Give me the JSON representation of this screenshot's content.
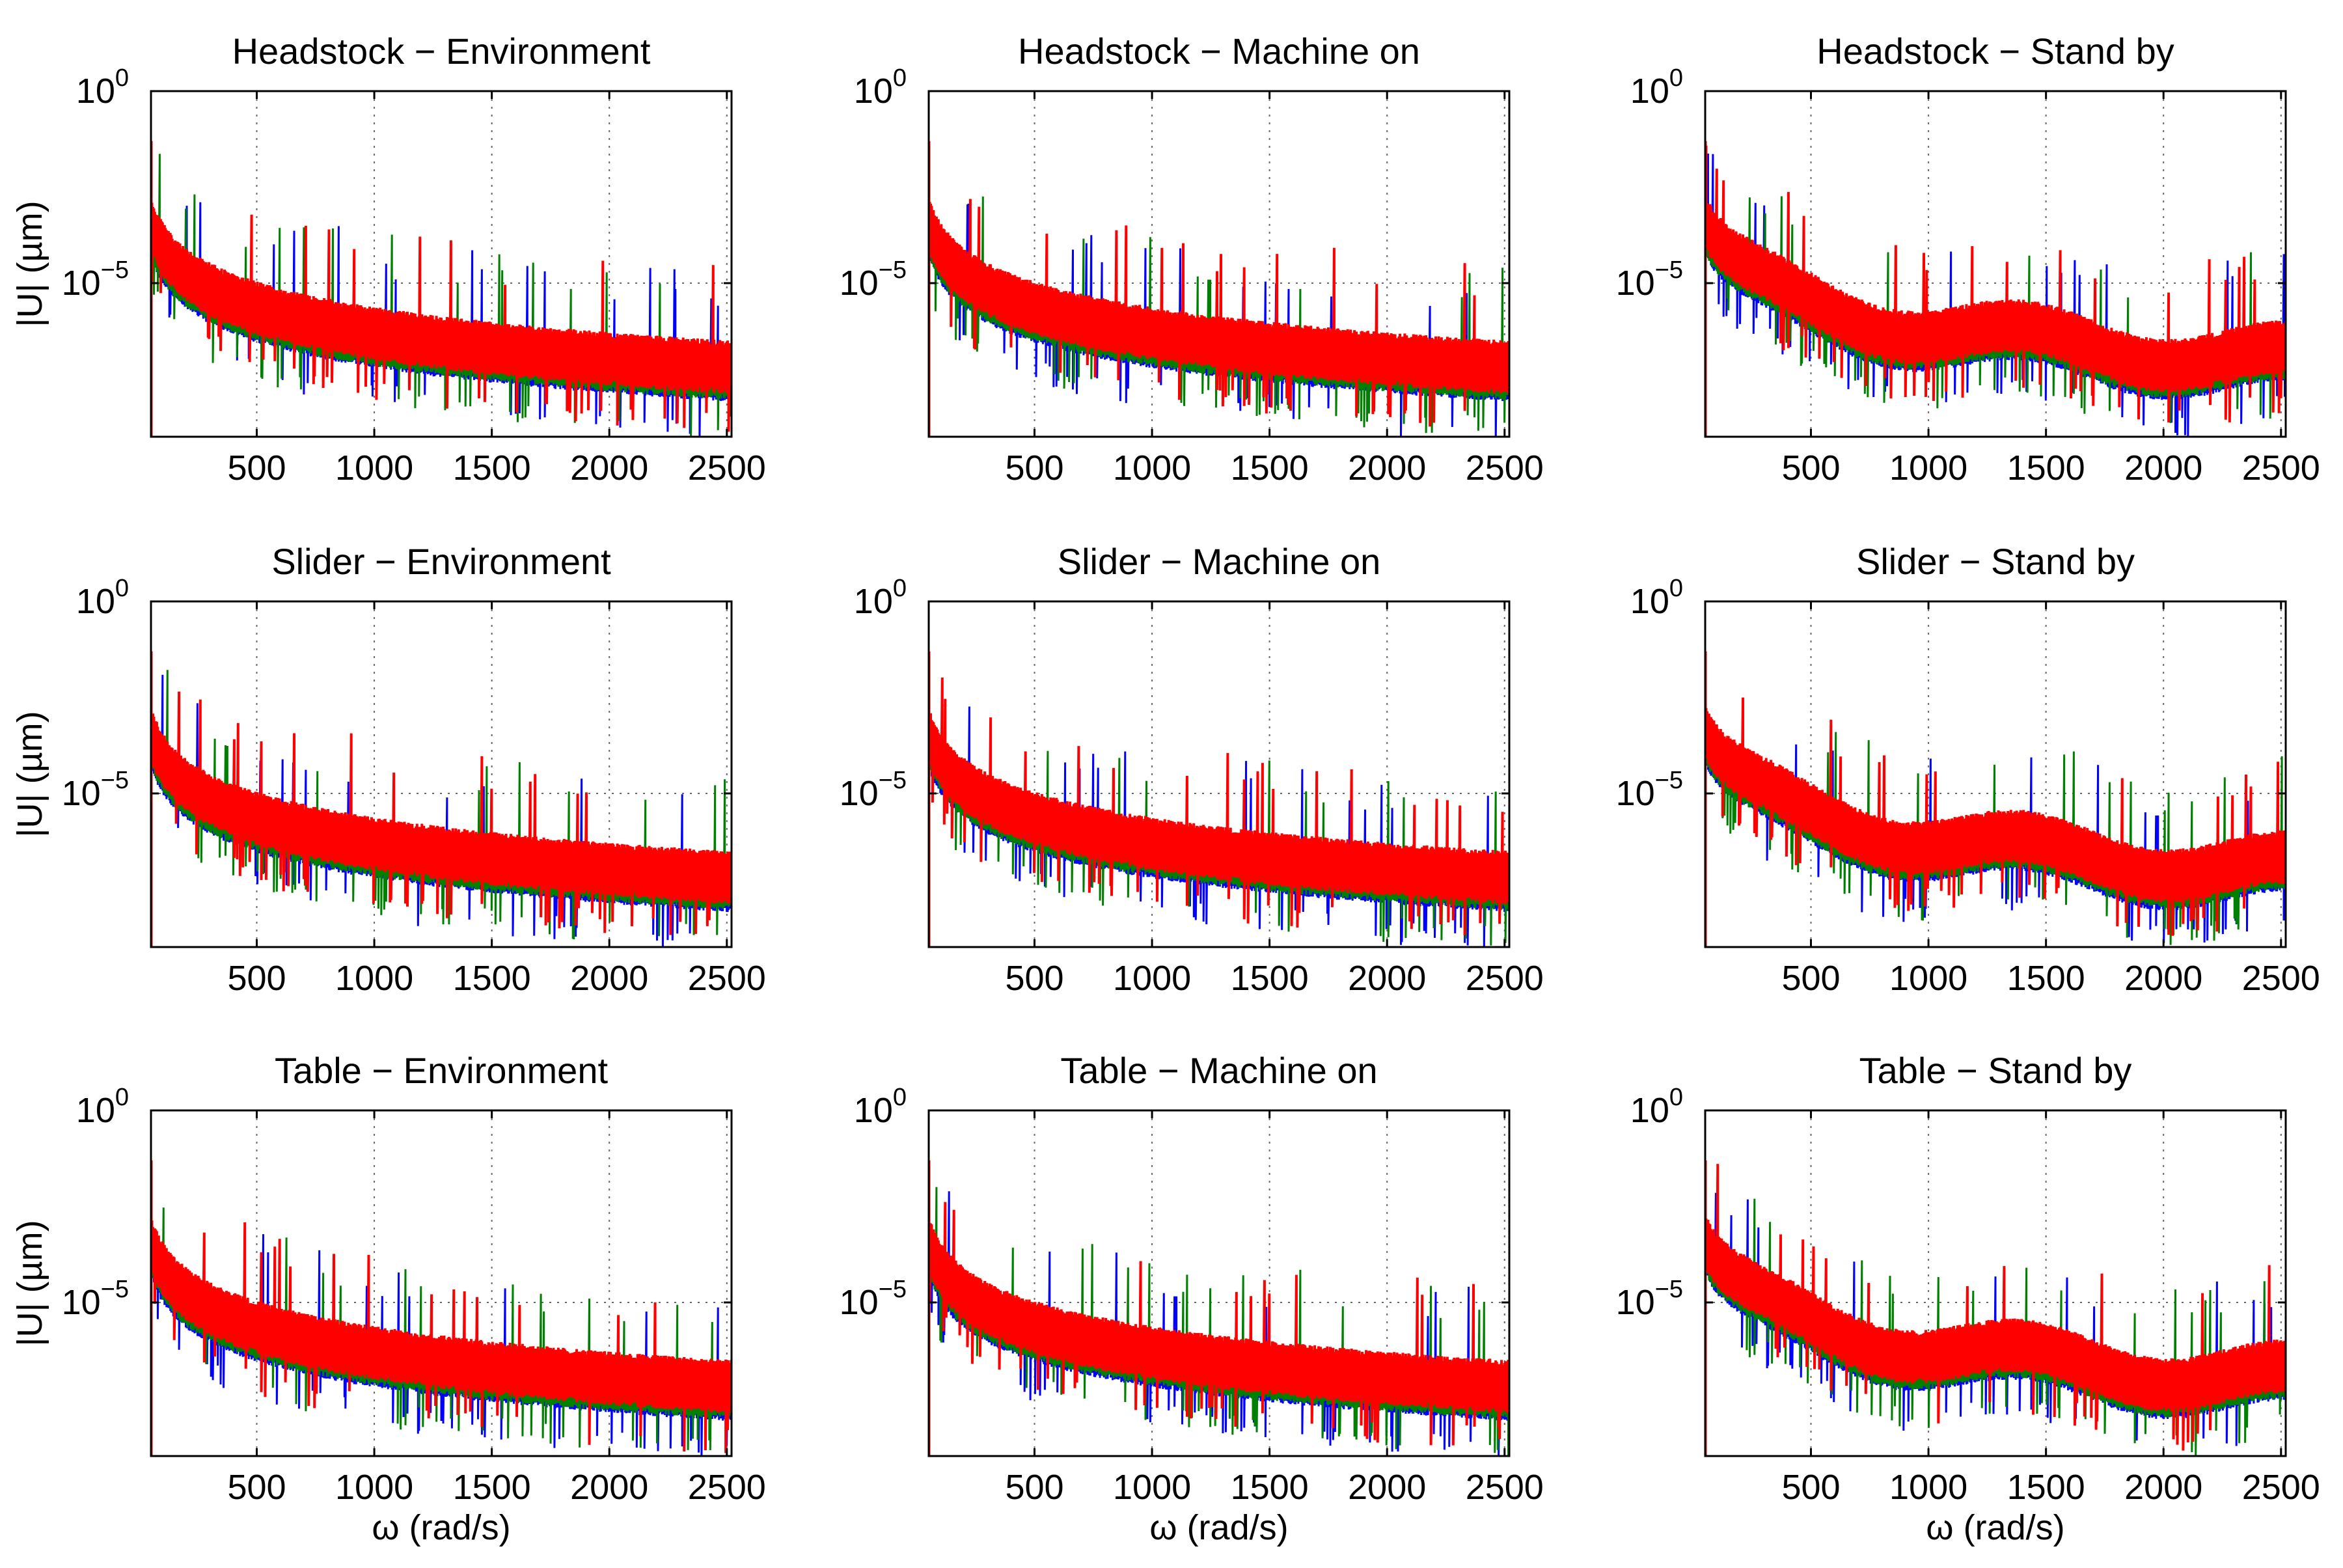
{
  "figure": {
    "ylabel": "|U| (µm)",
    "xlabel": "ω (rad/s)",
    "xticks": [
      "500",
      "1000",
      "1500",
      "2000",
      "2500"
    ],
    "yticks": [
      {
        "base": "10",
        "exp": "0"
      },
      {
        "base": "10",
        "exp": "−5"
      }
    ]
  },
  "chart_data": [
    {
      "type": "line",
      "title": "Headstock − Environment",
      "x_range": [
        50,
        2520
      ],
      "y_scale": "log",
      "ylim": [
        1e-09,
        1
      ],
      "series": [
        {
          "name": "blue",
          "color": "#0000ff"
        },
        {
          "name": "green",
          "color": "#008000"
        },
        {
          "name": "red",
          "color": "#ff0000"
        }
      ]
    },
    {
      "type": "line",
      "title": "Headstock − Machine on",
      "x_range": [
        50,
        2520
      ],
      "y_scale": "log",
      "ylim": [
        1e-09,
        1
      ],
      "series": [
        {
          "name": "blue",
          "color": "#0000ff"
        },
        {
          "name": "green",
          "color": "#008000"
        },
        {
          "name": "red",
          "color": "#ff0000"
        }
      ]
    },
    {
      "type": "line",
      "title": "Headstock − Stand by",
      "x_range": [
        50,
        2520
      ],
      "y_scale": "log",
      "ylim": [
        1e-09,
        1
      ],
      "series": [
        {
          "name": "blue",
          "color": "#0000ff"
        },
        {
          "name": "green",
          "color": "#008000"
        },
        {
          "name": "red",
          "color": "#ff0000"
        }
      ]
    },
    {
      "type": "line",
      "title": "Slider − Environment",
      "x_range": [
        50,
        2520
      ],
      "y_scale": "log",
      "ylim": [
        1e-09,
        1
      ],
      "series": [
        {
          "name": "blue",
          "color": "#0000ff"
        },
        {
          "name": "green",
          "color": "#008000"
        },
        {
          "name": "red",
          "color": "#ff0000"
        }
      ]
    },
    {
      "type": "line",
      "title": "Slider − Machine on",
      "x_range": [
        50,
        2520
      ],
      "y_scale": "log",
      "ylim": [
        1e-09,
        1
      ],
      "series": [
        {
          "name": "blue",
          "color": "#0000ff"
        },
        {
          "name": "green",
          "color": "#008000"
        },
        {
          "name": "red",
          "color": "#ff0000"
        }
      ]
    },
    {
      "type": "line",
      "title": "Slider − Stand by",
      "x_range": [
        50,
        2520
      ],
      "y_scale": "log",
      "ylim": [
        1e-09,
        1
      ],
      "series": [
        {
          "name": "blue",
          "color": "#0000ff"
        },
        {
          "name": "green",
          "color": "#008000"
        },
        {
          "name": "red",
          "color": "#ff0000"
        }
      ]
    },
    {
      "type": "line",
      "title": "Table − Environment",
      "x_range": [
        50,
        2520
      ],
      "y_scale": "log",
      "ylim": [
        1e-09,
        1
      ],
      "series": [
        {
          "name": "blue",
          "color": "#0000ff"
        },
        {
          "name": "green",
          "color": "#008000"
        },
        {
          "name": "red",
          "color": "#ff0000"
        }
      ]
    },
    {
      "type": "line",
      "title": "Table − Machine on",
      "x_range": [
        50,
        2520
      ],
      "y_scale": "log",
      "ylim": [
        1e-09,
        1
      ],
      "series": [
        {
          "name": "blue",
          "color": "#0000ff"
        },
        {
          "name": "green",
          "color": "#008000"
        },
        {
          "name": "red",
          "color": "#ff0000"
        }
      ]
    },
    {
      "type": "line",
      "title": "Table − Stand by",
      "x_range": [
        50,
        2520
      ],
      "y_scale": "log",
      "ylim": [
        1e-09,
        1
      ],
      "series": [
        {
          "name": "blue",
          "color": "#0000ff"
        },
        {
          "name": "green",
          "color": "#008000"
        },
        {
          "name": "red",
          "color": "#ff0000"
        }
      ]
    }
  ]
}
